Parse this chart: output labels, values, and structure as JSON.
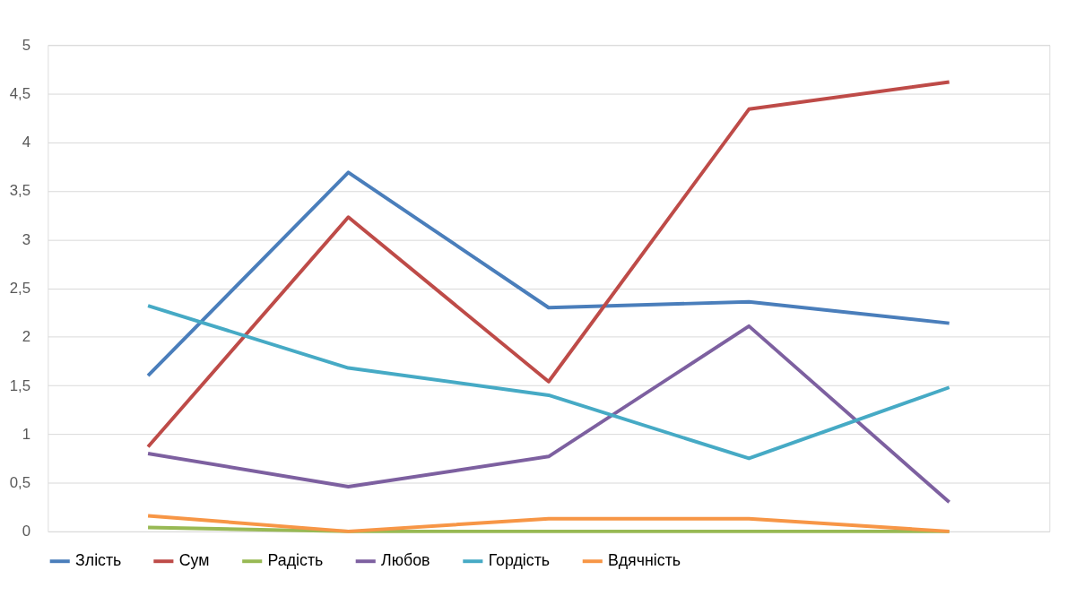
{
  "chart_data": {
    "type": "line",
    "categories": [
      null,
      null,
      null,
      null,
      null
    ],
    "series": [
      {
        "name": "Злість",
        "color": "#4a7ebb",
        "values": [
          1.6,
          3.69,
          2.3,
          2.36,
          2.14
        ]
      },
      {
        "name": "Сум",
        "color": "#be4b48",
        "values": [
          0.87,
          3.23,
          1.54,
          4.34,
          4.62
        ]
      },
      {
        "name": "Радість",
        "color": "#98b954",
        "values": [
          0.04,
          0,
          0,
          0,
          0
        ]
      },
      {
        "name": "Любов",
        "color": "#7d60a0",
        "values": [
          0.8,
          0.46,
          0.77,
          2.11,
          0.3
        ]
      },
      {
        "name": "Гордість",
        "color": "#46aac5",
        "values": [
          2.32,
          1.68,
          1.4,
          0.75,
          1.48
        ]
      },
      {
        "name": "Вдячність",
        "color": "#f79646",
        "values": [
          0.16,
          0,
          0.13,
          0.13,
          0
        ]
      }
    ],
    "ylim": [
      0,
      5
    ],
    "yticks": [
      0,
      {
        "value": 0.5,
        "label": "0,5"
      },
      1,
      {
        "value": 1.5,
        "label": "1,5"
      },
      2,
      {
        "value": 2.5,
        "label": "2,5"
      },
      3,
      {
        "value": 3.5,
        "label": "3,5"
      },
      4,
      {
        "value": 4.5,
        "label": "4,5"
      },
      5
    ],
    "grid": "y",
    "legend": "bottom",
    "tick_labels": "y",
    "marker": "none",
    "line_style": "solid"
  }
}
